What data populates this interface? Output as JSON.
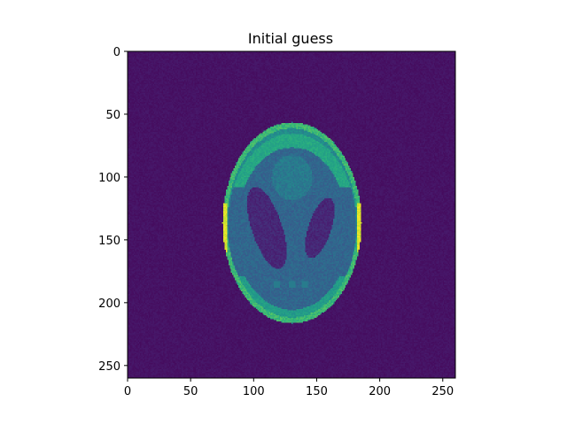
{
  "chart_data": {
    "type": "heatmap",
    "title": "Initial guess",
    "xlabel": "",
    "ylabel": "",
    "image_shape": [
      260,
      260
    ],
    "xlim": [
      0,
      260
    ],
    "ylim": [
      260,
      0
    ],
    "xticks": [
      0,
      50,
      100,
      150,
      200,
      250
    ],
    "yticks": [
      0,
      50,
      100,
      150,
      200,
      250
    ],
    "xtick_labels": [
      "0",
      "50",
      "100",
      "150",
      "200",
      "250"
    ],
    "ytick_labels": [
      "0",
      "50",
      "100",
      "150",
      "200",
      "250"
    ],
    "colormap": "viridis",
    "grid": false,
    "legend": "none",
    "content": "Shepp-Logan phantom reconstruction",
    "phantom": {
      "outer_ellipse": {
        "center_x": 130,
        "center_y": 136,
        "semi_x": 55,
        "semi_y": 80
      },
      "inner_ellipse": {
        "center_x": 130,
        "center_y": 138,
        "semi_x": 51,
        "semi_y": 73
      },
      "left_lobe": {
        "center_x": 110,
        "center_y": 140,
        "semi_x": 12,
        "semi_y": 34,
        "tilt_deg": -18
      },
      "right_lobe": {
        "center_x": 152,
        "center_y": 140,
        "semi_x": 9,
        "semi_y": 25,
        "tilt_deg": 18
      },
      "center_blob": {
        "center_x": 130,
        "center_y": 100,
        "semi_x": 16,
        "semi_y": 18
      }
    }
  }
}
